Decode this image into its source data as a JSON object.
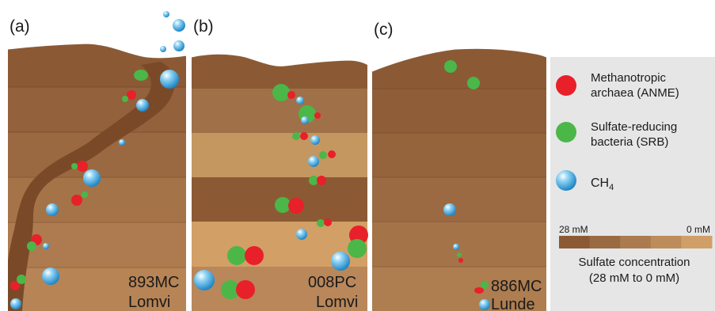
{
  "panels": [
    {
      "label": "(a)",
      "site": "893MC",
      "location": "Lomvi"
    },
    {
      "label": "(b)",
      "site": "008PC",
      "location": "Lomvi"
    },
    {
      "label": "(c)",
      "site": "886MC",
      "location": "Lunde"
    }
  ],
  "legend": {
    "anme_line1": "Methanotropic",
    "anme_line2": "archaea (ANME)",
    "srb_line1": "Sulfate-reducing",
    "srb_line2": "bacteria (SRB)",
    "ch4_base": "CH",
    "ch4_sub": "4",
    "scale_max": "28 mM",
    "scale_min": "0 mM",
    "scale_title": "Sulfate concentration",
    "scale_range": "(28 mM to 0 mM)"
  },
  "colors": {
    "anme": "#e8202a",
    "srb": "#4bb748",
    "ch4": "#2f9fd8",
    "sediment_dark": "#8b5a35",
    "sediment_light": "#d29f66",
    "legend_bg": "#e6e6e6",
    "seep_channel": "#7a4a28"
  },
  "sulfate_scale_steps": [
    "#8b5a35",
    "#9a6a42",
    "#ab7b4f",
    "#bd8c5b",
    "#d09f68"
  ]
}
